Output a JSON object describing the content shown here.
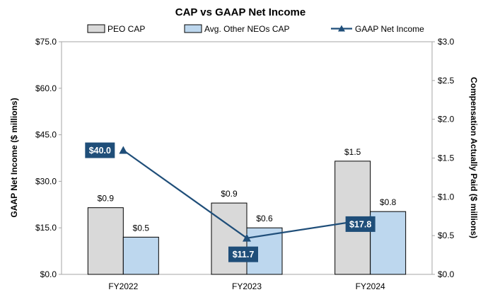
{
  "chart_data": {
    "type": "bar",
    "title": "CAP vs GAAP Net Income",
    "categories": [
      "FY2022",
      "FY2023",
      "FY2024"
    ],
    "ylabel": "GAAP Net Income ($ millions)",
    "y2label": "Compensation Actually Paid ($ millions)",
    "ylim": [
      0,
      75
    ],
    "y2lim": [
      0,
      3
    ],
    "yticks": [
      "$0.0",
      "$15.0",
      "$30.0",
      "$45.0",
      "$60.0",
      "$75.0"
    ],
    "y2ticks": [
      "$0.0",
      "$0.5",
      "$1.0",
      "$1.5",
      "$2.0",
      "$2.5",
      "$3.0"
    ],
    "legend_position": "top",
    "series": [
      {
        "name": "PEO CAP",
        "kind": "bar",
        "axis": "right",
        "values": [
          0.86,
          0.92,
          1.46
        ],
        "labels": [
          "$0.9",
          "$0.9",
          "$1.5"
        ],
        "color": "#d9d9d9"
      },
      {
        "name": "Avg. Other NEOs CAP",
        "kind": "bar",
        "axis": "right",
        "values": [
          0.48,
          0.6,
          0.81
        ],
        "labels": [
          "$0.5",
          "$0.6",
          "$0.8"
        ],
        "color": "#bdd7ee"
      },
      {
        "name": "GAAP Net Income",
        "kind": "line",
        "axis": "left",
        "values": [
          40.0,
          11.7,
          17.8
        ],
        "labels": [
          "$40.0",
          "$11.7",
          "$17.8"
        ],
        "color": "#1f4e79"
      }
    ]
  }
}
